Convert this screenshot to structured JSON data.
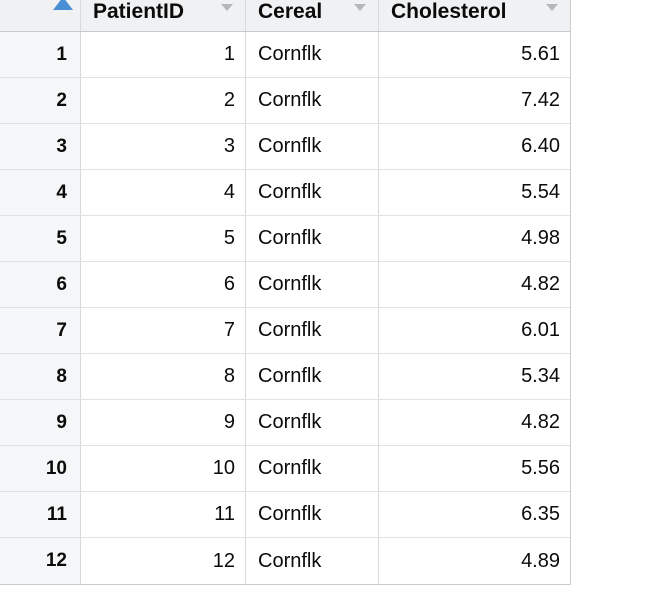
{
  "table": {
    "columns": [
      {
        "id": "patient_id",
        "label": "PatientID",
        "align": "right"
      },
      {
        "id": "cereal",
        "label": "Cereal",
        "align": "left"
      },
      {
        "id": "cholesterol",
        "label": "Cholesterol",
        "align": "right"
      }
    ],
    "rows": [
      {
        "n": "1",
        "patient_id": "1",
        "cereal": "Cornflk",
        "cholesterol": "5.61"
      },
      {
        "n": "2",
        "patient_id": "2",
        "cereal": "Cornflk",
        "cholesterol": "7.42"
      },
      {
        "n": "3",
        "patient_id": "3",
        "cereal": "Cornflk",
        "cholesterol": "6.40"
      },
      {
        "n": "4",
        "patient_id": "4",
        "cereal": "Cornflk",
        "cholesterol": "5.54"
      },
      {
        "n": "5",
        "patient_id": "5",
        "cereal": "Cornflk",
        "cholesterol": "4.98"
      },
      {
        "n": "6",
        "patient_id": "6",
        "cereal": "Cornflk",
        "cholesterol": "4.82"
      },
      {
        "n": "7",
        "patient_id": "7",
        "cereal": "Cornflk",
        "cholesterol": "6.01"
      },
      {
        "n": "8",
        "patient_id": "8",
        "cereal": "Cornflk",
        "cholesterol": "5.34"
      },
      {
        "n": "9",
        "patient_id": "9",
        "cereal": "Cornflk",
        "cholesterol": "4.82"
      },
      {
        "n": "10",
        "patient_id": "10",
        "cereal": "Cornflk",
        "cholesterol": "5.56"
      },
      {
        "n": "11",
        "patient_id": "11",
        "cereal": "Cornflk",
        "cholesterol": "6.35"
      },
      {
        "n": "12",
        "patient_id": "12",
        "cereal": "Cornflk",
        "cholesterol": "4.89"
      }
    ],
    "icons": {
      "sort_indicator": "up-triangle",
      "column_menu": "down-triangle"
    }
  },
  "colors": {
    "header_bg": "#f0f1f2",
    "row_number_bg": "#f4f6f7",
    "cell_bg": "#ffffff",
    "grid_line": "#d7dadb",
    "outer_border": "#c9cdd0",
    "sort_indicator_blue": "#4a8fd6",
    "column_menu_gray": "#b4b6b8",
    "text": "#0b0b0b"
  }
}
